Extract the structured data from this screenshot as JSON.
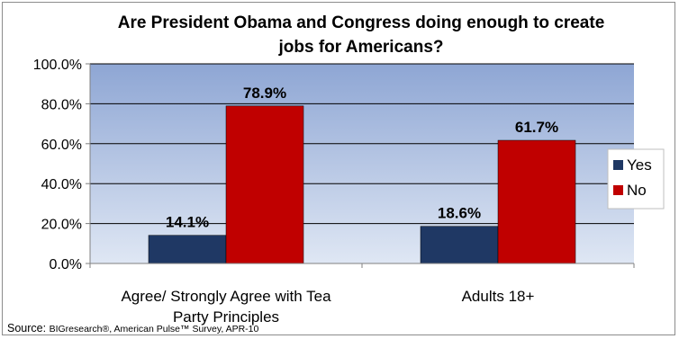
{
  "chart_data": {
    "type": "bar",
    "title_lines": [
      "Are President Obama and Congress doing enough to create",
      "jobs for Americans?"
    ],
    "categories": [
      [
        "Agree/ Strongly Agree with Tea",
        "Party Principles"
      ],
      [
        "Adults 18+"
      ]
    ],
    "series": [
      {
        "name": "Yes",
        "values": [
          14.1,
          18.6
        ],
        "labels": [
          "14.1%",
          "18.6%"
        ],
        "color": "#1f3864"
      },
      {
        "name": "No",
        "values": [
          78.9,
          61.7
        ],
        "labels": [
          "78.9%",
          "61.7%"
        ],
        "color": "#c00000"
      }
    ],
    "ylim": [
      0,
      100
    ],
    "yticks": [
      "0.0%",
      "20.0%",
      "40.0%",
      "60.0%",
      "80.0%",
      "100.0%"
    ],
    "grid": true,
    "legend_position": "right",
    "plot_background": "#9eb3d9"
  },
  "source": {
    "prefix": "Source: ",
    "org": "BIGresearch®, American Pulse™ Survey, APR-10"
  }
}
